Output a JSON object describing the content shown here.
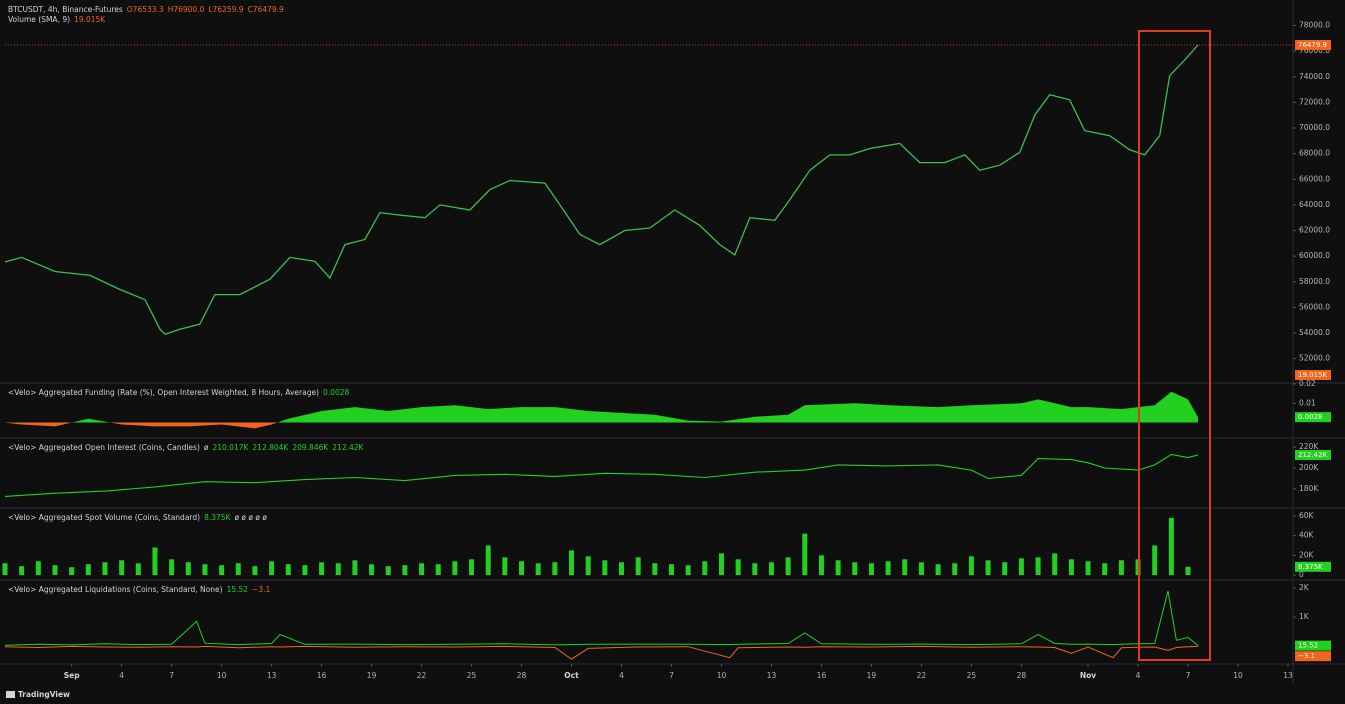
{
  "brand": "TradingView",
  "chart_data": [
    {
      "type": "line",
      "title": "BTCUSDT, 4h, Binance-Futures",
      "ohlc": [
        "O76533.3",
        "H76900.0",
        "L76259.9",
        "C76479.9"
      ],
      "volume_title": "Volume (SMA, 9)",
      "volume_label": "19.015K",
      "color": "#3cbf4e",
      "tag_color": "#f2641d",
      "x": [
        -3,
        -2,
        0,
        2.1,
        3.9,
        5.4,
        6.3,
        6.6,
        7.5,
        8.7,
        9.6,
        11.1,
        12.9,
        14.1,
        15.6,
        16.5,
        17.4,
        18.6,
        19.5,
        20.7,
        22.2,
        23.1,
        24.9,
        26.1,
        27.3,
        29.4,
        30.3,
        31.5,
        32.7,
        34.2,
        35.7,
        37.2,
        38.7,
        39.9,
        40.8,
        41.7,
        43.2,
        44.1,
        45.3,
        46.5,
        47.7,
        48.9,
        50.7,
        51.9,
        53.4,
        54.6,
        55.5,
        56.7,
        57.9,
        58.8,
        59.7,
        60.9,
        61.8,
        63.3,
        64.5,
        65.4,
        66.3,
        66.9,
        67.8,
        68.6
      ],
      "values": [
        59550,
        59900,
        58800,
        58500,
        57400,
        56600,
        54300,
        53900,
        54300,
        54700,
        57000,
        57000,
        58200,
        59900,
        59600,
        58300,
        60900,
        61300,
        63400,
        63200,
        63000,
        64000,
        63600,
        65200,
        65900,
        65700,
        64000,
        61700,
        60900,
        62000,
        62200,
        63600,
        62400,
        60900,
        60100,
        63000,
        62800,
        64400,
        66700,
        67900,
        67900,
        68400,
        68800,
        67300,
        67300,
        67900,
        66700,
        67100,
        68100,
        71000,
        72600,
        72200,
        69800,
        69400,
        68300,
        67900,
        69400,
        74100,
        75300,
        76479.9
      ],
      "last_value": 76479.9,
      "xlim": [
        -3,
        74.3
      ],
      "ylim": [
        50100,
        79600
      ],
      "yticks": [
        {
          "value": 52000,
          "label": "52000.0"
        },
        {
          "value": 54000,
          "label": "54000.0"
        },
        {
          "value": 56000,
          "label": "56000.0"
        },
        {
          "value": 58000,
          "label": "58000.0"
        },
        {
          "value": 60000,
          "label": "60000.0"
        },
        {
          "value": 62000,
          "label": "62000.0"
        },
        {
          "value": 64000,
          "label": "64000.0"
        },
        {
          "value": 66000,
          "label": "66000.0"
        },
        {
          "value": 68000,
          "label": "68000.0"
        },
        {
          "value": 70000,
          "label": "70000.0"
        },
        {
          "value": 72000,
          "label": "72000.0"
        },
        {
          "value": 74000,
          "label": "74000.0"
        },
        {
          "value": 76000,
          "label": "76000.0"
        },
        {
          "value": 78000,
          "label": "78000.0"
        }
      ]
    },
    {
      "type": "area",
      "title": "<Velo> Aggregated Funding (Rate (%), Open Interest Weighted, 8 Hours, Average)",
      "color": "#22d11f",
      "negative_color": "#f2641d",
      "x": [
        -3,
        -2,
        0,
        2,
        4,
        6,
        8,
        10,
        12,
        13,
        14,
        16,
        18,
        20,
        22,
        24,
        26,
        28,
        30,
        32,
        34,
        36,
        38,
        40,
        42,
        44,
        45,
        48,
        50,
        53,
        55,
        58,
        59,
        61,
        62,
        64,
        65,
        66,
        67,
        68,
        68.6
      ],
      "values": [
        0,
        -0.001,
        -0.002,
        0.002,
        -0.001,
        -0.002,
        -0.002,
        -0.001,
        -0.003,
        -0.001,
        0.002,
        0.006,
        0.008,
        0.006,
        0.008,
        0.009,
        0.007,
        0.008,
        0.008,
        0.006,
        0.005,
        0.004,
        0.001,
        0.0005,
        0.003,
        0.004,
        0.009,
        0.01,
        0.009,
        0.008,
        0.009,
        0.01,
        0.012,
        0.008,
        0.008,
        0.007,
        0.008,
        0.009,
        0.016,
        0.012,
        0.0028
      ],
      "last_value": 0.0028,
      "xlim": [
        -3,
        74.3
      ],
      "ylim": [
        -0.008,
        0.0205
      ],
      "yticks": [
        0.01,
        0.02
      ]
    },
    {
      "type": "line",
      "title": "<Velo> Aggregated Open Interest (Coins, Candles)",
      "symbol": "ø",
      "legend_values": [
        "210.017K",
        "212.804K",
        "209.846K",
        "212.42K"
      ],
      "color": "#22d11f",
      "x": [
        -3,
        0,
        3,
        6,
        9,
        12,
        15,
        18,
        21,
        24,
        27,
        30,
        33,
        36,
        39,
        42,
        45,
        47,
        50,
        53,
        55,
        56,
        58,
        59,
        61,
        62,
        63,
        65,
        66,
        67,
        68,
        68.6
      ],
      "values": [
        173000,
        176000,
        178000,
        182000,
        187000,
        186000,
        189000,
        191000,
        188000,
        193000,
        194000,
        192000,
        195000,
        194000,
        191000,
        196000,
        198000,
        203000,
        202000,
        203000,
        198000,
        190000,
        193000,
        209000,
        208000,
        205000,
        200000,
        198000,
        203000,
        213000,
        210000,
        212420
      ],
      "last_value": 212420,
      "last_label": "212.42K",
      "xlim": [
        -3,
        74.3
      ],
      "ylim": [
        161900,
        228600
      ],
      "yticks": [
        {
          "value": 180000,
          "label": "180K"
        },
        {
          "value": 200000,
          "label": "200K"
        },
        {
          "value": 220000,
          "label": "220K"
        }
      ]
    },
    {
      "type": "bar",
      "title": "<Velo> Aggregated Spot Volume (Coins, Standard)",
      "legend_value": "8.375K",
      "symbols": "ø ø ø ø ø",
      "color": "#22d11f",
      "x": [
        -3,
        -2,
        -1,
        0,
        1,
        2,
        3,
        4,
        5,
        6,
        7,
        8,
        9,
        10,
        11,
        12,
        13,
        14,
        15,
        16,
        17,
        18,
        19,
        20,
        21,
        22,
        23,
        24,
        25,
        26,
        27,
        28,
        29,
        30,
        31,
        32,
        33,
        34,
        35,
        36,
        37,
        38,
        39,
        40,
        41,
        42,
        43,
        44,
        45,
        46,
        47,
        48,
        49,
        50,
        51,
        52,
        53,
        54,
        55,
        56,
        57,
        58,
        59,
        60,
        61,
        62,
        63,
        64,
        65,
        66,
        67,
        68
      ],
      "values": [
        12000,
        9000,
        14000,
        10000,
        8000,
        11000,
        13000,
        15000,
        12000,
        28000,
        16000,
        13000,
        11000,
        10000,
        12000,
        9000,
        14000,
        11000,
        10000,
        13000,
        12000,
        15000,
        11000,
        9000,
        10000,
        12000,
        11000,
        14000,
        16000,
        30000,
        18000,
        14000,
        12000,
        13000,
        25000,
        19000,
        15000,
        13000,
        18000,
        12000,
        11000,
        10000,
        14000,
        22000,
        16000,
        12000,
        13000,
        18000,
        42000,
        20000,
        15000,
        13000,
        12000,
        14000,
        16000,
        13000,
        11000,
        12000,
        19000,
        15000,
        13000,
        17000,
        18000,
        22000,
        16000,
        14000,
        12000,
        15000,
        16000,
        30000,
        58000,
        8375
      ],
      "last_value": 8375,
      "last_label": "8.375K",
      "xlim": [
        -3,
        74.3
      ],
      "ylim": [
        -5000,
        68000
      ],
      "yticks": [
        0,
        {
          "value": 20000,
          "label": "20K"
        },
        {
          "value": 40000,
          "label": "40K"
        },
        {
          "value": 60000,
          "label": "60K"
        }
      ]
    },
    {
      "type": "line",
      "title": "<Velo> Aggregated Liquidations (Coins, Standard, None)",
      "x": [
        -3,
        -1,
        1,
        3,
        5,
        7,
        8.5,
        9,
        11,
        13,
        13.5,
        15,
        18,
        21,
        24,
        27,
        30,
        31,
        32,
        35,
        38,
        40.5,
        41,
        44,
        45,
        46,
        49,
        52,
        55,
        58,
        59,
        60,
        61,
        62,
        63.5,
        64,
        65,
        66,
        66.8,
        67.3,
        68,
        68.6
      ],
      "series": [
        {
          "color": "#22d11f",
          "values": [
            30,
            60,
            40,
            80,
            50,
            60,
            850,
            100,
            50,
            90,
            400,
            60,
            70,
            50,
            60,
            80,
            40,
            50,
            60,
            70,
            60,
            50,
            60,
            90,
            450,
            80,
            60,
            70,
            50,
            80,
            400,
            90,
            60,
            70,
            50,
            60,
            80,
            90,
            1900,
            200,
            300,
            15.52
          ],
          "last_value": 15.52
        },
        {
          "color": "#f2641d",
          "values": [
            -20,
            -50,
            -10,
            -30,
            -40,
            -20,
            -30,
            -10,
            -60,
            -20,
            -30,
            -10,
            -40,
            -20,
            -30,
            -10,
            -50,
            -450,
            -80,
            -30,
            -20,
            -400,
            -60,
            -30,
            -40,
            -20,
            -30,
            -10,
            -40,
            -20,
            -30,
            -50,
            -250,
            -30,
            -400,
            -60,
            -40,
            -30,
            -150,
            -50,
            -20,
            -3.1
          ],
          "last_value": -3.1,
          "last_label": "−3.1"
        }
      ],
      "xlim": [
        -3,
        74.3
      ],
      "ylim": [
        -480,
        2280
      ],
      "yticks": [
        {
          "value": 1000,
          "label": "1K"
        },
        {
          "value": 2000,
          "label": "2K"
        }
      ],
      "xticks": [
        {
          "value": 1,
          "label": "Sep"
        },
        4,
        7,
        10,
        13,
        16,
        19,
        22,
        25,
        28,
        {
          "value": 31,
          "label": "Oct"
        },
        {
          "value": 34,
          "label": "4"
        },
        {
          "value": 37,
          "label": "7"
        },
        {
          "value": 40,
          "label": "10"
        },
        {
          "value": 43,
          "label": "13"
        },
        {
          "value": 46,
          "label": "16"
        },
        {
          "value": 49,
          "label": "19"
        },
        {
          "value": 52,
          "label": "22"
        },
        {
          "value": 55,
          "label": "25"
        },
        {
          "value": 58,
          "label": "28"
        },
        {
          "value": 62,
          "label": "Nov"
        },
        {
          "value": 65,
          "label": "4"
        },
        {
          "value": 68,
          "label": "7"
        },
        {
          "value": 71,
          "label": "10"
        },
        {
          "value": 74,
          "label": "13"
        }
      ]
    }
  ]
}
